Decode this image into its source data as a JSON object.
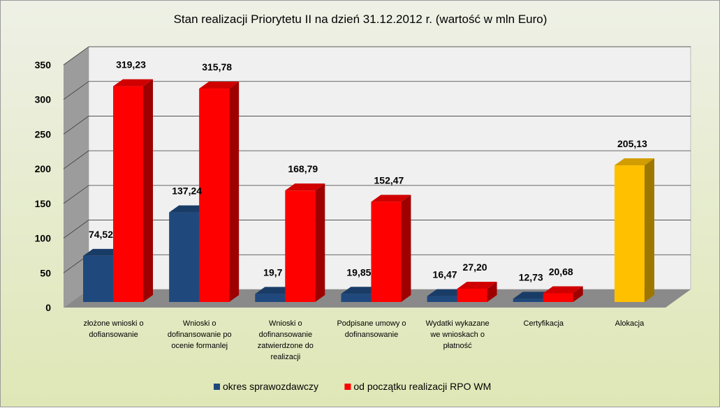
{
  "chart_data": {
    "type": "bar",
    "title": "Stan realizacji Priorytetu II na dzień 31.12.2012 r. (wartość w mln Euro)",
    "xlabel": "",
    "ylabel": "",
    "ylim": [
      0,
      350
    ],
    "yticks": [
      "0",
      "50",
      "100",
      "150",
      "200",
      "250",
      "300",
      "350"
    ],
    "grid": true,
    "legend": "bottom",
    "categories": [
      [
        "złożone wnioski  o",
        "dofiansowanie"
      ],
      [
        "Wnioski o",
        "dofinansowanie  po",
        "ocenie formanlej"
      ],
      [
        "Wnioski o",
        "dofinansowanie",
        "zatwierdzone do",
        "realizacji"
      ],
      [
        "Podpisane  umowy o",
        "dofinansowanie"
      ],
      [
        "Wydatki wykazane",
        "we wnioskach  o",
        "płatność"
      ],
      [
        "Certyfikacja"
      ],
      [
        "Alokacja"
      ]
    ],
    "series": [
      {
        "name": "okres sprawozdawczy",
        "color": "#1f497d",
        "values": [
          74.52,
          137.24,
          19.7,
          19.85,
          16.47,
          12.73,
          null
        ],
        "labels": [
          "74,52",
          "137,24",
          "19,7",
          "19,85",
          "16,47",
          "12,73",
          ""
        ]
      },
      {
        "name": "od początku realizacji RPO WM",
        "color": "#ff0000",
        "values": [
          319.23,
          315.78,
          168.79,
          152.47,
          27.2,
          20.68,
          null
        ],
        "labels": [
          "319,23",
          "315,78",
          "168,79",
          "152,47",
          "27,20",
          "20,68",
          ""
        ]
      }
    ],
    "extra_bars": [
      {
        "category_index": 6,
        "value": 205.13,
        "label": "205,13",
        "color": "#ffc000"
      }
    ]
  }
}
